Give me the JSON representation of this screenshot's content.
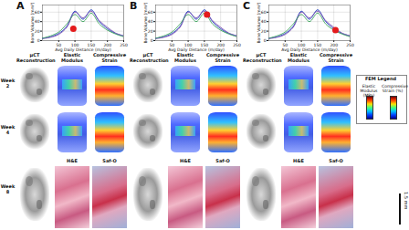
{
  "chart_data": [
    {
      "type": "line",
      "xlabel": "Avg Daily Distance (m/day)",
      "ylabel": "Bone Volume (mm³)",
      "x": [
        0,
        25,
        50,
        75,
        100,
        125,
        150,
        175,
        200,
        225,
        250
      ],
      "series": [
        {
          "color": "#1f3fbf",
          "values": [
            5,
            8,
            15,
            30,
            62,
            45,
            65,
            40,
            25,
            15,
            10
          ]
        },
        {
          "color": "#7b4fb0",
          "values": [
            4,
            7,
            13,
            28,
            60,
            48,
            62,
            42,
            28,
            16,
            10
          ]
        },
        {
          "color": "#3aa35a",
          "values": [
            5,
            10,
            18,
            35,
            55,
            40,
            58,
            35,
            22,
            14,
            8
          ]
        }
      ],
      "highlight": {
        "x": 95,
        "y": 25,
        "color": "#e41a1c"
      },
      "xlim": [
        0,
        250
      ],
      "ylim": [
        0,
        75
      ],
      "xticks": [
        50,
        100,
        150,
        200,
        250
      ],
      "yticks": [
        0,
        20,
        40,
        60
      ],
      "grid": true
    },
    {
      "type": "line",
      "xlabel": "Avg Daily Distance (m/day)",
      "ylabel": "Bone Volume (mm³)",
      "x": [
        0,
        25,
        50,
        75,
        100,
        125,
        150,
        175,
        200,
        225,
        250
      ],
      "series": [
        {
          "color": "#1f3fbf",
          "values": [
            5,
            8,
            15,
            30,
            62,
            45,
            65,
            40,
            25,
            15,
            10
          ]
        },
        {
          "color": "#7b4fb0",
          "values": [
            4,
            7,
            13,
            28,
            60,
            48,
            62,
            42,
            28,
            16,
            10
          ]
        },
        {
          "color": "#3aa35a",
          "values": [
            5,
            10,
            18,
            35,
            55,
            40,
            58,
            35,
            22,
            14,
            8
          ]
        }
      ],
      "highlight": {
        "x": 158,
        "y": 55,
        "color": "#e41a1c"
      },
      "xlim": [
        0,
        250
      ],
      "ylim": [
        0,
        75
      ],
      "xticks": [
        50,
        100,
        150,
        200,
        250
      ],
      "yticks": [
        0,
        20,
        40,
        60
      ],
      "grid": true
    },
    {
      "type": "line",
      "xlabel": "Avg Daily Distance (m/day)",
      "ylabel": "Bone Volume (mm³)",
      "x": [
        0,
        25,
        50,
        75,
        100,
        125,
        150,
        175,
        200,
        225,
        250
      ],
      "series": [
        {
          "color": "#1f3fbf",
          "values": [
            5,
            8,
            15,
            30,
            62,
            45,
            65,
            40,
            25,
            15,
            10
          ]
        },
        {
          "color": "#7b4fb0",
          "values": [
            4,
            7,
            13,
            28,
            60,
            48,
            62,
            42,
            28,
            16,
            10
          ]
        },
        {
          "color": "#3aa35a",
          "values": [
            5,
            10,
            18,
            35,
            55,
            40,
            58,
            35,
            22,
            14,
            8
          ]
        }
      ],
      "highlight": {
        "x": 205,
        "y": 22,
        "color": "#e41a1c"
      },
      "xlim": [
        0,
        250
      ],
      "ylim": [
        0,
        75
      ],
      "xticks": [
        50,
        100,
        150,
        200,
        250
      ],
      "yticks": [
        0,
        20,
        40,
        60
      ],
      "grid": true
    }
  ],
  "panels": [
    {
      "label": "A",
      "headers": [
        "µCT Reconstruction",
        "Elastic Modulus",
        "Compressive Strain"
      ],
      "week8_headers": [
        "H&E",
        "Saf-O"
      ]
    },
    {
      "label": "B",
      "headers": [
        "µCT Reconstruction",
        "Elastic Modulus",
        "Compressive Strain"
      ],
      "week8_headers": [
        "H&E",
        "Saf-O"
      ]
    },
    {
      "label": "C",
      "headers": [
        "µCT Reconstruction",
        "Elastic Modulus",
        "Compressive Strain"
      ],
      "week8_headers": [
        "H&E",
        "Saf-O"
      ]
    }
  ],
  "rows": [
    "Week 2",
    "Week 4",
    "Week 8"
  ],
  "legend": {
    "title": "FEM Legend",
    "items": [
      "Elastic Modulus (MPa)",
      "Compressive Strain (%)"
    ]
  },
  "scale_bar": "1.5 mm"
}
